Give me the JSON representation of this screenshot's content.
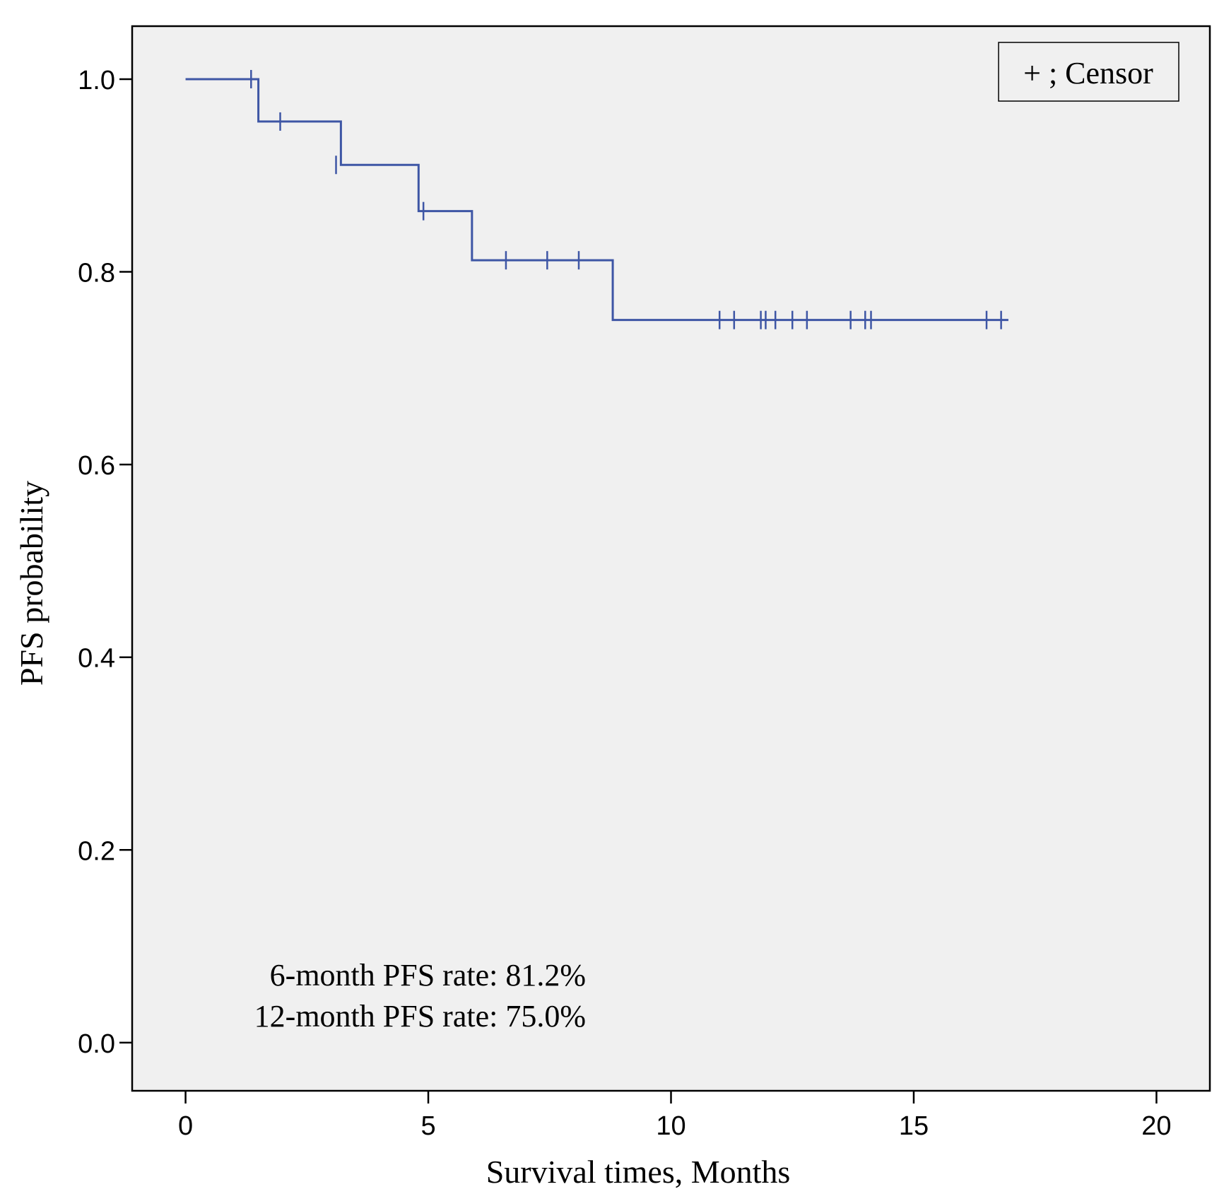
{
  "chart_data": {
    "type": "line",
    "title": "",
    "xlabel": "Survival times, Months",
    "ylabel": "PFS probability",
    "xlim": [
      -1.1,
      21.1
    ],
    "ylim": [
      -0.05,
      1.055
    ],
    "xticks": [
      0,
      5,
      10,
      15,
      20
    ],
    "yticks": [
      0.0,
      0.2,
      0.4,
      0.6,
      0.8,
      1.0
    ],
    "xtick_labels": [
      "0",
      "5",
      "10",
      "15",
      "20"
    ],
    "ytick_labels": [
      "0.0",
      "0.2",
      "0.4",
      "0.6",
      "0.8",
      "1.0"
    ],
    "grid": false,
    "plot_background": "#f0f0f0",
    "line_color": "#3e56a5",
    "series": [
      {
        "steps": [
          {
            "x": 0.0,
            "y": 1.0
          },
          {
            "x": 1.5,
            "y": 0.956
          },
          {
            "x": 3.2,
            "y": 0.911
          },
          {
            "x": 4.8,
            "y": 0.863
          },
          {
            "x": 5.9,
            "y": 0.812
          },
          {
            "x": 8.8,
            "y": 0.75
          }
        ],
        "end_x": 16.95,
        "censors": [
          {
            "x": 1.35,
            "y": 1.0
          },
          {
            "x": 1.95,
            "y": 0.956
          },
          {
            "x": 3.1,
            "y": 0.911
          },
          {
            "x": 4.9,
            "y": 0.863
          },
          {
            "x": 6.6,
            "y": 0.812
          },
          {
            "x": 7.45,
            "y": 0.812
          },
          {
            "x": 8.1,
            "y": 0.812
          },
          {
            "x": 11.0,
            "y": 0.75
          },
          {
            "x": 11.3,
            "y": 0.75
          },
          {
            "x": 11.85,
            "y": 0.75
          },
          {
            "x": 11.95,
            "y": 0.75
          },
          {
            "x": 12.15,
            "y": 0.75
          },
          {
            "x": 12.5,
            "y": 0.75
          },
          {
            "x": 12.8,
            "y": 0.75
          },
          {
            "x": 13.7,
            "y": 0.75
          },
          {
            "x": 14.0,
            "y": 0.75
          },
          {
            "x": 14.12,
            "y": 0.75
          },
          {
            "x": 16.5,
            "y": 0.75
          },
          {
            "x": 16.8,
            "y": 0.75
          }
        ]
      }
    ],
    "legend": {
      "text": "+ ; Censor",
      "position": "top-right"
    },
    "annotations": [
      "6-month PFS rate: 81.2%",
      "12-month PFS rate: 75.0%"
    ]
  }
}
